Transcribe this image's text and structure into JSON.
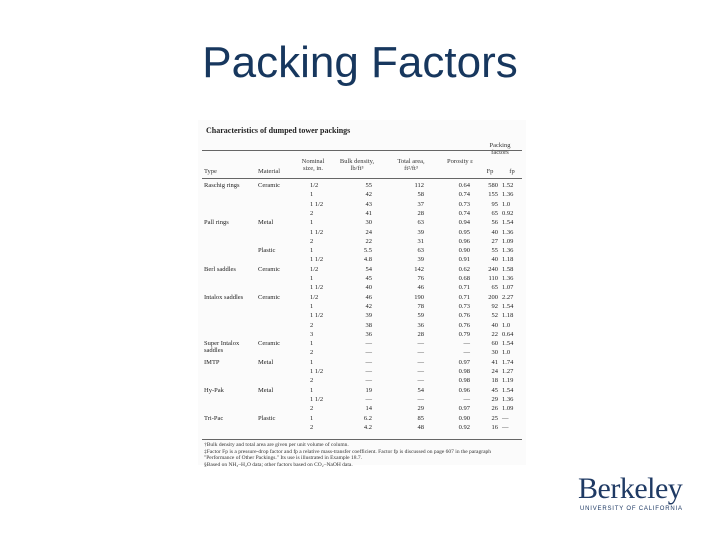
{
  "slide": {
    "title": "Packing Factors"
  },
  "table": {
    "caption": "Characteristics of dumped tower packings",
    "packing_factors_header": "Packing factors",
    "headers": {
      "type": "Type",
      "material": "Material",
      "nominal": "Nominal size, in.",
      "bulk": "Bulk density, lb/ft³",
      "area": "Total area, ft²/ft³",
      "porosity": "Porosity ε",
      "fp": "Fp",
      "fv": "fp"
    },
    "rows": [
      {
        "type": "Raschig rings",
        "material": "Ceramic",
        "size": "1/2",
        "bulk": "55",
        "area": "112",
        "por": "0.64",
        "fp": "580",
        "fv": "1.52"
      },
      {
        "type": "",
        "material": "",
        "size": "1",
        "bulk": "42",
        "area": "58",
        "por": "0.74",
        "fp": "155",
        "fv": "1.36"
      },
      {
        "type": "",
        "material": "",
        "size": "1 1/2",
        "bulk": "43",
        "area": "37",
        "por": "0.73",
        "fp": "95",
        "fv": "1.0"
      },
      {
        "type": "",
        "material": "",
        "size": "2",
        "bulk": "41",
        "area": "28",
        "por": "0.74",
        "fp": "65",
        "fv": "0.92"
      },
      {
        "type": "Pall rings",
        "material": "Metal",
        "size": "1",
        "bulk": "30",
        "area": "63",
        "por": "0.94",
        "fp": "56",
        "fv": "1.54"
      },
      {
        "type": "",
        "material": "",
        "size": "1 1/2",
        "bulk": "24",
        "area": "39",
        "por": "0.95",
        "fp": "40",
        "fv": "1.36"
      },
      {
        "type": "",
        "material": "",
        "size": "2",
        "bulk": "22",
        "area": "31",
        "por": "0.96",
        "fp": "27",
        "fv": "1.09"
      },
      {
        "type": "",
        "material": "Plastic",
        "size": "1",
        "bulk": "5.5",
        "area": "63",
        "por": "0.90",
        "fp": "55",
        "fv": "1.36"
      },
      {
        "type": "",
        "material": "",
        "size": "1 1/2",
        "bulk": "4.8",
        "area": "39",
        "por": "0.91",
        "fp": "40",
        "fv": "1.18"
      },
      {
        "type": "Berl saddles",
        "material": "Ceramic",
        "size": "1/2",
        "bulk": "54",
        "area": "142",
        "por": "0.62",
        "fp": "240",
        "fv": "1.58"
      },
      {
        "type": "",
        "material": "",
        "size": "1",
        "bulk": "45",
        "area": "76",
        "por": "0.68",
        "fp": "110",
        "fv": "1.36"
      },
      {
        "type": "",
        "material": "",
        "size": "1 1/2",
        "bulk": "40",
        "area": "46",
        "por": "0.71",
        "fp": "65",
        "fv": "1.07"
      },
      {
        "type": "Intalox saddles",
        "material": "Ceramic",
        "size": "1/2",
        "bulk": "46",
        "area": "190",
        "por": "0.71",
        "fp": "200",
        "fv": "2.27"
      },
      {
        "type": "",
        "material": "",
        "size": "1",
        "bulk": "42",
        "area": "78",
        "por": "0.73",
        "fp": "92",
        "fv": "1.54"
      },
      {
        "type": "",
        "material": "",
        "size": "1 1/2",
        "bulk": "39",
        "area": "59",
        "por": "0.76",
        "fp": "52",
        "fv": "1.18"
      },
      {
        "type": "",
        "material": "",
        "size": "2",
        "bulk": "38",
        "area": "36",
        "por": "0.76",
        "fp": "40",
        "fv": "1.0"
      },
      {
        "type": "",
        "material": "",
        "size": "3",
        "bulk": "36",
        "area": "28",
        "por": "0.79",
        "fp": "22",
        "fv": "0.64"
      },
      {
        "type": "Super Intalox saddles",
        "material": "Ceramic",
        "size": "1",
        "bulk": "—",
        "area": "—",
        "por": "—",
        "fp": "60",
        "fv": "1.54"
      },
      {
        "type": "",
        "material": "",
        "size": "2",
        "bulk": "—",
        "area": "—",
        "por": "—",
        "fp": "30",
        "fv": "1.0"
      },
      {
        "type": "IMTP",
        "material": "Metal",
        "size": "1",
        "bulk": "—",
        "area": "—",
        "por": "0.97",
        "fp": "41",
        "fv": "1.74"
      },
      {
        "type": "",
        "material": "",
        "size": "1 1/2",
        "bulk": "—",
        "area": "—",
        "por": "0.98",
        "fp": "24",
        "fv": "1.27"
      },
      {
        "type": "",
        "material": "",
        "size": "2",
        "bulk": "—",
        "area": "—",
        "por": "0.98",
        "fp": "18",
        "fv": "1.19"
      },
      {
        "type": "Hy-Pak",
        "material": "Metal",
        "size": "1",
        "bulk": "19",
        "area": "54",
        "por": "0.96",
        "fp": "45",
        "fv": "1.54"
      },
      {
        "type": "",
        "material": "",
        "size": "1 1/2",
        "bulk": "—",
        "area": "—",
        "por": "—",
        "fp": "29",
        "fv": "1.36"
      },
      {
        "type": "",
        "material": "",
        "size": "2",
        "bulk": "14",
        "area": "29",
        "por": "0.97",
        "fp": "26",
        "fv": "1.09"
      },
      {
        "type": "Tri-Pac",
        "material": "Plastic",
        "size": "1",
        "bulk": "6.2",
        "area": "85",
        "por": "0.90",
        "fp": "25",
        "fv": "—"
      },
      {
        "type": "",
        "material": "",
        "size": "2",
        "bulk": "4.2",
        "area": "48",
        "por": "0.92",
        "fp": "16",
        "fv": "—"
      }
    ],
    "footnotes": [
      "†Bulk density and total area are given per unit volume of column.",
      "‡Factor Fp is a pressure-drop factor and fp a relative mass-transfer coefficient. Factor fp is discussed on page 607 in the paragraph \"Performance of Other Packings.\" Its use is illustrated in Example 18.7.",
      "§Based on NH₃–H₂O data; other factors based on CO₂–NaOH data."
    ]
  },
  "logo": {
    "wordmark": "Berkeley",
    "subtitle": "UNIVERSITY OF CALIFORNIA"
  }
}
